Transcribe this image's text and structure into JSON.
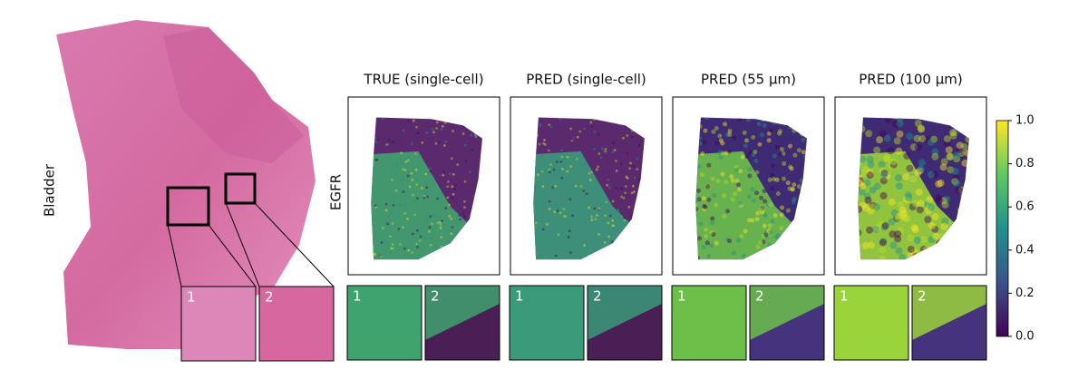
{
  "row_label": "Bladder",
  "gene_label": "EGFR",
  "panels": [
    {
      "title": "TRUE (single-cell)"
    },
    {
      "title": "PRED (single-cell)"
    },
    {
      "title": "PRED (55 μm)"
    },
    {
      "title": "PRED (100 μm)"
    }
  ],
  "inset_labels": [
    "1",
    "2"
  ],
  "colorbar": {
    "range": [
      0,
      1
    ],
    "ticks": [
      {
        "value": 0,
        "label": "0.0"
      },
      {
        "value": 0.2,
        "label": "0.2"
      },
      {
        "value": 0.4,
        "label": "0.4"
      },
      {
        "value": 0.6,
        "label": "0.6"
      },
      {
        "value": 0.8,
        "label": "0.8"
      },
      {
        "value": 1,
        "label": "1.0"
      }
    ]
  }
}
